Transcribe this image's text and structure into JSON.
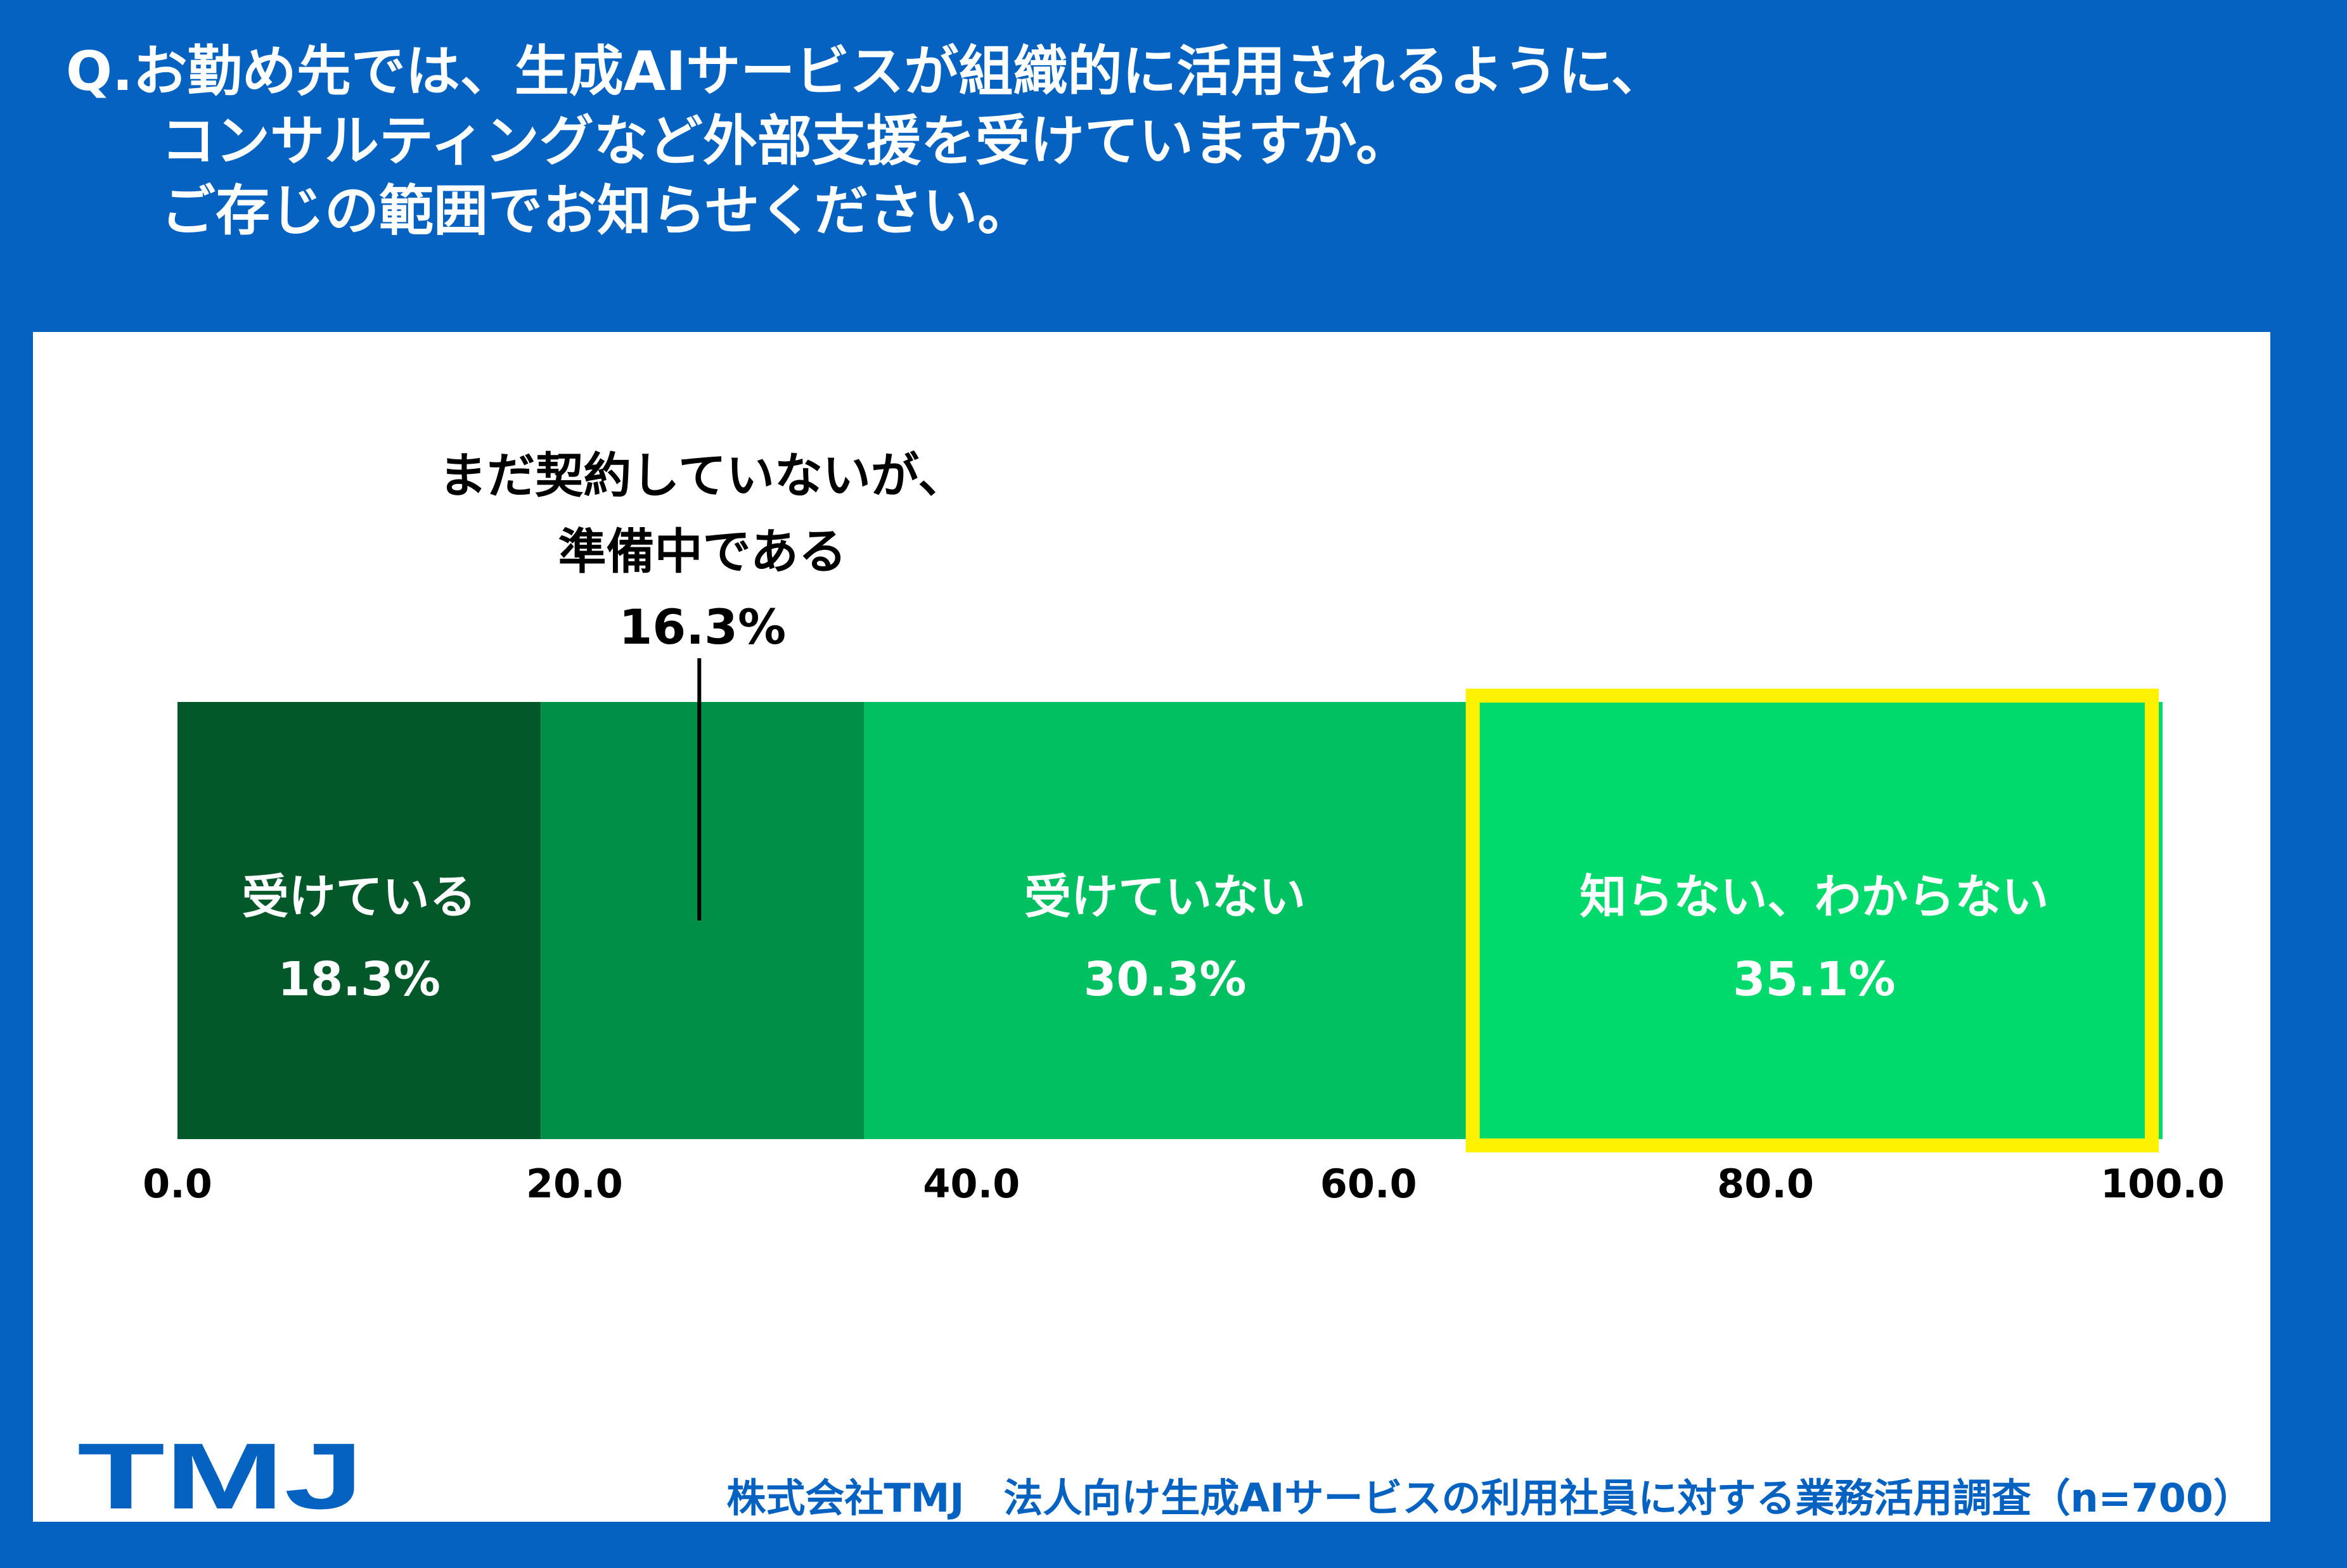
{
  "title_lines": [
    "Q.お勤め先では、生成AIサービスが組織的に活用されるように、",
    "コンサルティングなど外部支援を受けていますか。",
    "ご存じの範囲でお知らせください。"
  ],
  "chart_data": {
    "type": "bar",
    "orientation": "horizontal-stacked",
    "title": "Q.お勤め先では、生成AIサービスが組織的に活用されるように、コンサルティングなど外部支援を受けていますか。ご存じの範囲でお知らせください。",
    "xlim": [
      0,
      100
    ],
    "ticks": [
      "0.0",
      "20.0",
      "40.0",
      "60.0",
      "80.0",
      "100.0"
    ],
    "tick_values": [
      0,
      20,
      40,
      60,
      80,
      100
    ],
    "highlight_index": 3,
    "highlight_color": "#fff200",
    "segments": [
      {
        "label": "受けている",
        "value": 18.3,
        "value_label": "18.3%",
        "color": "#03582a",
        "text_color": "#ffffff"
      },
      {
        "label_lines": [
          "まだ契約していないが、",
          "準備中である"
        ],
        "value": 16.3,
        "value_label": "16.3%",
        "color": "#008f46",
        "text_color": "#000000",
        "callout": true
      },
      {
        "label": "受けていない",
        "value": 30.3,
        "value_label": "30.3%",
        "color": "#00c062",
        "text_color": "#ffffff"
      },
      {
        "label": "知らない、わからない",
        "value": 35.1,
        "value_label": "35.1%",
        "color": "#00d96c",
        "text_color": "#ffffff"
      }
    ]
  },
  "logo": {
    "text": "TMJ",
    "color_blue": "#0562c0",
    "color_green": "#4aa14b"
  },
  "source": "株式会社TMJ　法人向け生成AIサービスの利用社員に対する業務活用調査（n=700）"
}
